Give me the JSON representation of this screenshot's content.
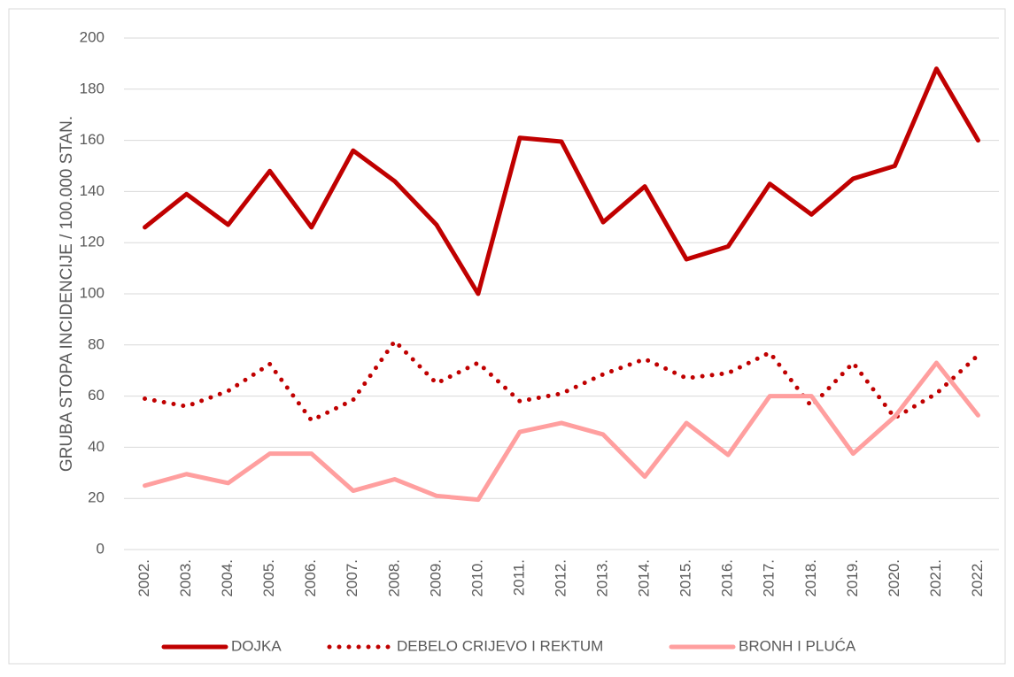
{
  "chart_data": {
    "type": "line",
    "y_label": "GRUBA STOPA INCIDENCIJE / 100.000 STAN.",
    "categories": [
      "2002.",
      "2003.",
      "2004.",
      "2005.",
      "2006.",
      "2007.",
      "2008.",
      "2009.",
      "2010.",
      "2011.",
      "2012.",
      "2013.",
      "2014.",
      "2015.",
      "2016.",
      "2017.",
      "2018.",
      "2019.",
      "2020.",
      "2021.",
      "2022."
    ],
    "series": [
      {
        "name": "DOJKA",
        "color": "#c00000",
        "line_style": "solid",
        "values": [
          126,
          139,
          127,
          148,
          126,
          156,
          144,
          127,
          100,
          161,
          159.5,
          128,
          142,
          113.5,
          118.5,
          143,
          131,
          145,
          150,
          188,
          160
        ]
      },
      {
        "name": "DEBELO CRIJEVO I REKTUM",
        "color": "#c00000",
        "line_style": "dotted",
        "values": [
          59,
          56,
          62,
          72.5,
          50.5,
          58.5,
          81.5,
          65,
          73,
          58,
          61,
          68.5,
          74.5,
          67,
          69,
          77,
          56,
          73,
          51.5,
          61,
          76
        ]
      },
      {
        "name": "BRONH I PLUĆA",
        "color": "#ff9f9f",
        "line_style": "solid",
        "values": [
          25,
          29.5,
          26,
          37.5,
          37.5,
          23,
          27.5,
          21,
          19.5,
          46,
          49.5,
          45,
          28.5,
          49.5,
          37,
          60,
          60,
          37.5,
          52,
          73,
          52.5
        ]
      }
    ],
    "ylim": [
      0,
      200
    ],
    "yticks": [
      0,
      20,
      40,
      60,
      80,
      100,
      120,
      140,
      160,
      180,
      200
    ],
    "grid": true,
    "legend": "bottom"
  }
}
